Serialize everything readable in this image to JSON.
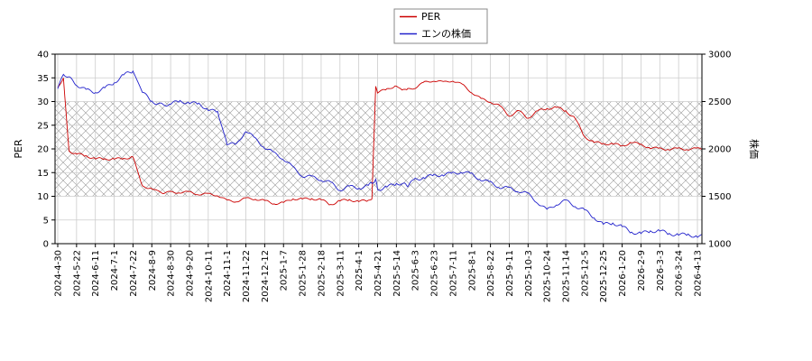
{
  "chart_data": {
    "type": "line",
    "title": "",
    "x_ticks": [
      "2024-4-30",
      "2024-5-22",
      "2024-6-11",
      "2024-7-1",
      "2024-7-22",
      "2024-8-9",
      "2024-8-30",
      "2024-9-20",
      "2024-10-11",
      "2024-11-1",
      "2024-11-22",
      "2024-12-12",
      "2025-1-7",
      "2025-1-28",
      "2025-2-18",
      "2025-3-11",
      "2025-4-1",
      "2025-4-21",
      "2025-5-14",
      "2025-6-3",
      "2025-6-23",
      "2025-7-11",
      "2025-8-1",
      "2025-8-22",
      "2025-9-11",
      "2025-10-3",
      "2025-10-24",
      "2025-11-14",
      "2025-12-5",
      "2025-12-25",
      "2026-1-20",
      "2026-2-9",
      "2026-3-3",
      "2026-3-24",
      "2026-4-13"
    ],
    "y_left": {
      "label": "PER",
      "ylim": [
        0,
        40
      ],
      "ticks": [
        0,
        5,
        10,
        15,
        20,
        25,
        30,
        35,
        40
      ]
    },
    "y_right": {
      "label": "株価",
      "ylim": [
        1000,
        3000
      ],
      "ticks": [
        1000,
        1500,
        2000,
        2500,
        3000
      ]
    },
    "shaded_band": {
      "axis": "left",
      "from": 10,
      "to": 30,
      "pattern": "crosshatch"
    },
    "grid": true,
    "legend": {
      "position": "top-center",
      "entries": [
        "PER",
        "エンの株価"
      ]
    },
    "series": [
      {
        "name": "PER",
        "axis": "left",
        "color": "#cc0000",
        "x_index": [
          0,
          0.3,
          0.6,
          1,
          1.5,
          2,
          2.5,
          3,
          3.5,
          4,
          4.5,
          5,
          5.3,
          5.6,
          6,
          6.5,
          7,
          7.5,
          8,
          8.5,
          9,
          9.5,
          10,
          10.5,
          11,
          11.5,
          12,
          12.5,
          13,
          13.5,
          14,
          14.5,
          15,
          15.5,
          16,
          16.5,
          16.7,
          16.9,
          17,
          17.5,
          18,
          18.3,
          18.5,
          18.6,
          19,
          19.5,
          20,
          20.5,
          21,
          21.5,
          22,
          22.5,
          23,
          23.5,
          24,
          24.5,
          25,
          25.5,
          26,
          26.5,
          27,
          27.5,
          28,
          28.5,
          29,
          29.5,
          30,
          30.5,
          31,
          31.5,
          32,
          32.5,
          33,
          33.5,
          34,
          34.5
        ],
        "values": [
          33,
          35,
          19.5,
          19,
          18.5,
          18,
          17.8,
          18,
          17.8,
          18.5,
          12,
          11.8,
          11,
          10.8,
          10.8,
          10.9,
          10.8,
          10.5,
          10.4,
          10.3,
          9,
          9,
          9.5,
          9.5,
          9,
          8.5,
          8.6,
          9.5,
          9.4,
          9.5,
          9.3,
          8.2,
          9.1,
          9.2,
          9,
          9,
          9.6,
          33,
          32,
          32.5,
          33.5,
          32.2,
          32.8,
          32.5,
          33,
          34,
          34.5,
          34,
          34.5,
          33.5,
          32,
          30.5,
          30,
          29,
          27,
          28,
          26.5,
          28,
          28.5,
          28.8,
          28,
          26.5,
          22.5,
          21.5,
          21,
          21.2,
          20.5,
          21.5,
          20.8,
          20.3,
          20,
          20,
          20,
          20,
          20,
          20
        ]
      },
      {
        "name": "エンの株価",
        "axis": "right",
        "color": "#2222cc",
        "x_index": [
          0,
          0.3,
          0.6,
          1,
          1.5,
          2,
          2.5,
          3,
          3.5,
          4,
          4.5,
          5,
          5.3,
          5.6,
          6,
          6.5,
          7,
          7.5,
          8,
          8.5,
          9,
          9.5,
          10,
          10.5,
          11,
          11.5,
          12,
          12.5,
          13,
          13.5,
          14,
          14.5,
          15,
          15.5,
          16,
          16.5,
          16.7,
          16.9,
          17,
          17.5,
          18,
          18.3,
          18.5,
          18.6,
          19,
          19.5,
          20,
          20.5,
          21,
          21.5,
          22,
          22.5,
          23,
          23.5,
          24,
          24.5,
          25,
          25.5,
          26,
          26.5,
          27,
          27.5,
          28,
          28.5,
          29,
          29.5,
          30,
          30.5,
          31,
          31.5,
          32,
          32.5,
          33,
          33.5,
          34,
          34.5
        ],
        "values": [
          2620,
          2800,
          2750,
          2680,
          2620,
          2600,
          2640,
          2700,
          2780,
          2820,
          2600,
          2500,
          2480,
          2460,
          2480,
          2500,
          2490,
          2470,
          2420,
          2380,
          2060,
          2040,
          2200,
          2100,
          2020,
          1950,
          1900,
          1800,
          1720,
          1700,
          1680,
          1640,
          1570,
          1600,
          1590,
          1610,
          1640,
          1680,
          1570,
          1600,
          1630,
          1640,
          1620,
          1610,
          1680,
          1700,
          1720,
          1730,
          1740,
          1760,
          1730,
          1680,
          1640,
          1600,
          1580,
          1560,
          1520,
          1440,
          1350,
          1420,
          1450,
          1400,
          1350,
          1280,
          1200,
          1220,
          1180,
          1120,
          1110,
          1130,
          1140,
          1100,
          1100,
          1090,
          1080,
          1080
        ]
      }
    ]
  }
}
